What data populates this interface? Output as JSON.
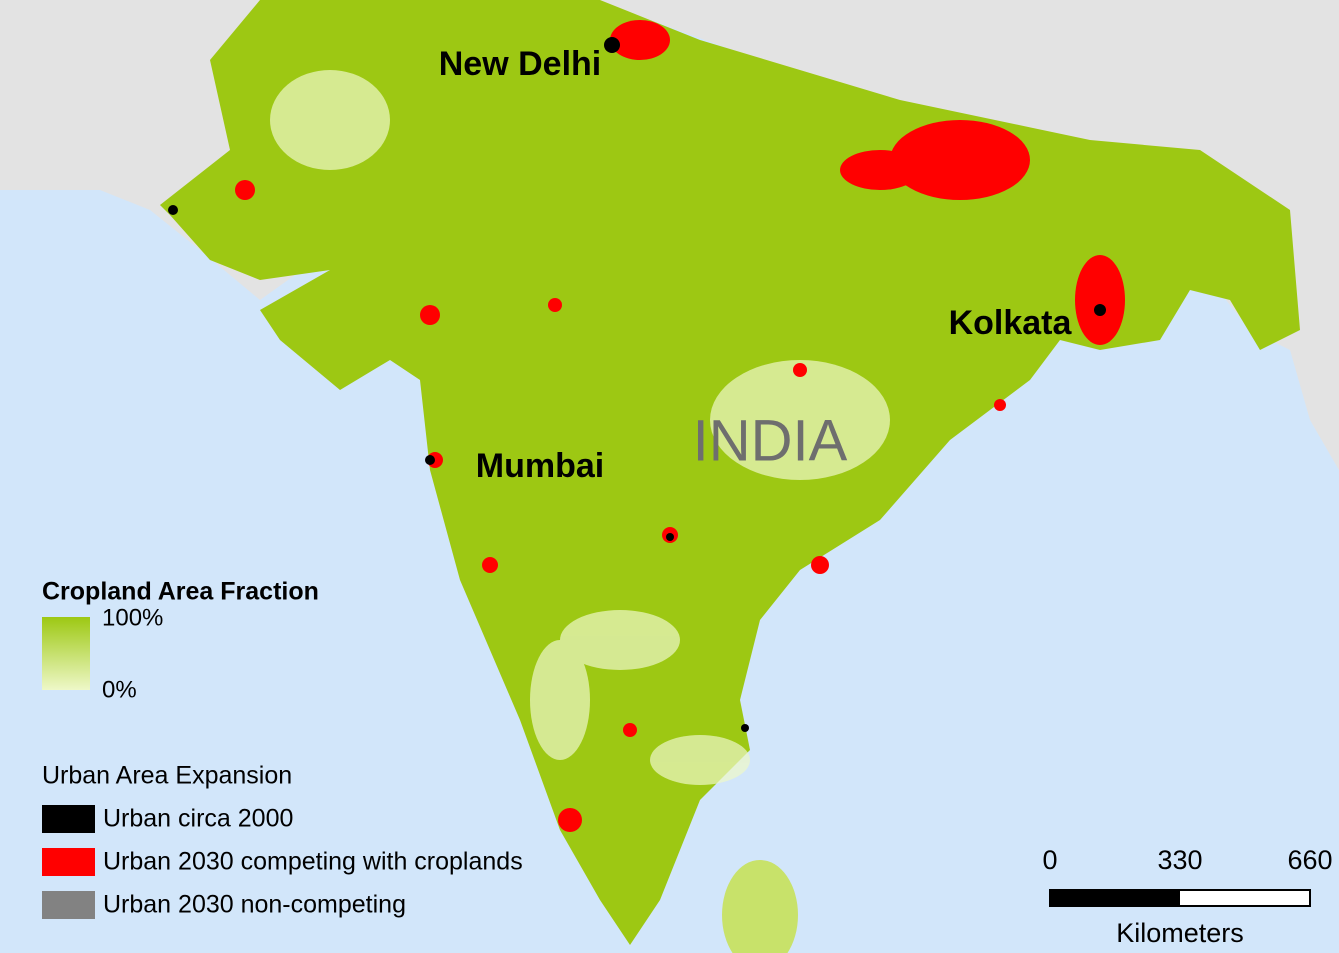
{
  "map": {
    "cities": [
      {
        "name": "New Delhi"
      },
      {
        "name": "Kolkata"
      },
      {
        "name": "Mumbai"
      }
    ],
    "country": "INDIA",
    "legend": {
      "cropland": {
        "title": "Cropland Area Fraction",
        "max_label": "100%",
        "min_label": "0%",
        "max_color": "#9dc813",
        "min_color": "#eef8c8"
      },
      "urban": {
        "title": "Urban Area Expansion",
        "items": [
          {
            "label": "Urban circa 2000",
            "color": "#000000"
          },
          {
            "label": "Urban 2030 competing with croplands",
            "color": "#ff0000"
          },
          {
            "label": "Urban 2030 non-competing",
            "color": "#828282"
          }
        ]
      }
    },
    "scale_bar": {
      "ticks": [
        0,
        330,
        660
      ],
      "unit": "Kilometers"
    }
  }
}
